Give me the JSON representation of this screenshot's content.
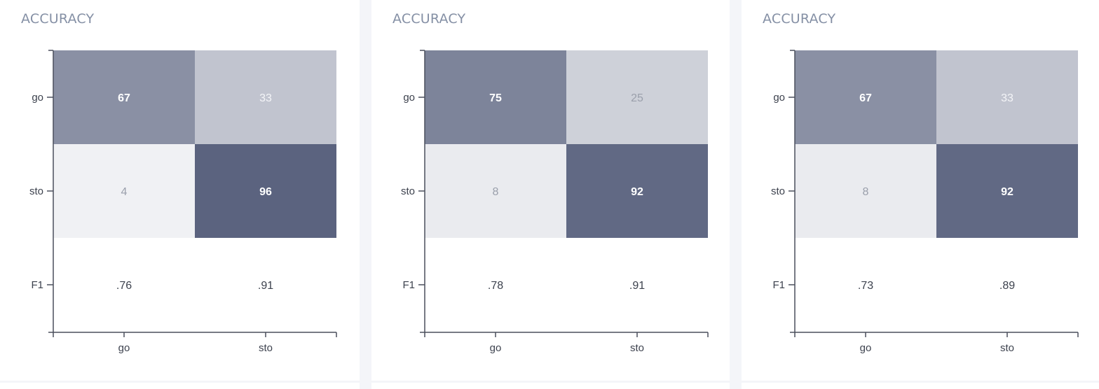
{
  "chart_data": [
    {
      "type": "heatmap",
      "title": "ACCURACY",
      "columns": [
        "go",
        "sto"
      ],
      "rows": [
        "go",
        "sto"
      ],
      "matrix": [
        [
          67,
          33
        ],
        [
          4,
          96
        ]
      ],
      "f1_row_label": "F1",
      "f1": [
        ".76",
        ".91"
      ],
      "color_low": "#f7f7f9",
      "color_high": "#545d7a"
    },
    {
      "type": "heatmap",
      "title": "ACCURACY",
      "columns": [
        "go",
        "sto"
      ],
      "rows": [
        "go",
        "sto"
      ],
      "matrix": [
        [
          75,
          25
        ],
        [
          8,
          92
        ]
      ],
      "f1_row_label": "F1",
      "f1": [
        ".78",
        ".91"
      ],
      "color_low": "#f7f7f9",
      "color_high": "#545d7a"
    },
    {
      "type": "heatmap",
      "title": "ACCURACY",
      "columns": [
        "go",
        "sto"
      ],
      "rows": [
        "go",
        "sto"
      ],
      "matrix": [
        [
          67,
          33
        ],
        [
          8,
          92
        ]
      ],
      "f1_row_label": "F1",
      "f1": [
        ".73",
        ".89"
      ],
      "color_low": "#f7f7f9",
      "color_high": "#545d7a"
    }
  ]
}
